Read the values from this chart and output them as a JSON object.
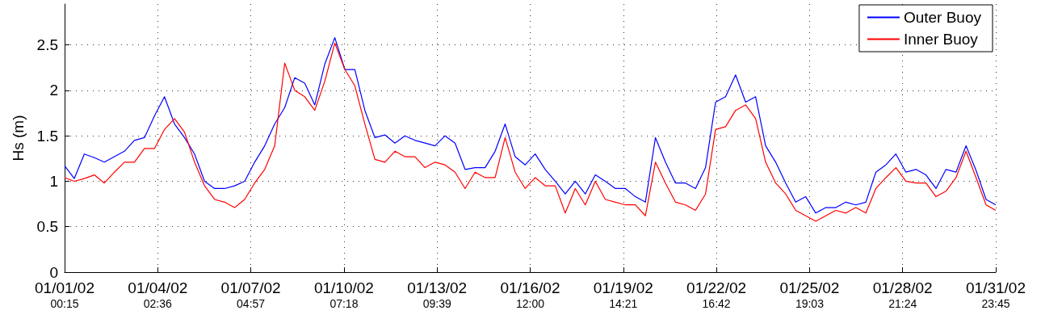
{
  "chart_data": {
    "type": "line",
    "ylabel": "Hs (m)",
    "x": [
      "--01-01T00:15",
      "--01-01T08:00",
      "--01-01T16:00",
      "--01-02T00:00",
      "--01-02T08:00",
      "--01-02T16:00",
      "--01-03T00:00",
      "--01-03T08:00",
      "--01-03T16:00",
      "--01-04T00:00",
      "--01-04T08:00",
      "--01-04T16:00",
      "--01-05T00:00",
      "--01-05T08:00",
      "--01-05T16:00",
      "--01-06T00:00",
      "--01-06T08:00",
      "--01-06T16:00",
      "--01-07T00:00",
      "--01-07T08:00",
      "--01-07T16:00",
      "--01-08T00:00",
      "--01-08T08:00",
      "--01-08T16:00",
      "--01-09T00:00",
      "--01-09T08:00",
      "--01-09T16:00",
      "--01-10T00:00",
      "--01-10T08:00",
      "--01-10T16:00",
      "--01-11T00:00",
      "--01-11T08:00",
      "--01-11T16:00",
      "--01-12T00:00",
      "--01-12T08:00",
      "--01-12T16:00",
      "--01-13T00:00",
      "--01-13T08:00",
      "--01-13T16:00",
      "--01-14T00:00",
      "--01-14T08:00",
      "--01-14T16:00",
      "--01-15T00:00",
      "--01-15T08:00",
      "--01-15T16:00",
      "--01-16T00:00",
      "--01-16T08:00",
      "--01-16T16:00",
      "--01-17T00:00",
      "--01-17T08:00",
      "--01-17T16:00",
      "--01-18T00:00",
      "--01-18T08:00",
      "--01-18T16:00",
      "--01-19T00:00",
      "--01-19T08:00",
      "--01-19T16:00",
      "--01-20T00:00",
      "--01-20T08:00",
      "--01-20T16:00",
      "--01-21T00:00",
      "--01-21T08:00",
      "--01-21T16:00",
      "--01-22T00:00",
      "--01-22T08:00",
      "--01-22T16:00",
      "--01-23T00:00",
      "--01-23T08:00",
      "--01-23T16:00",
      "--01-24T00:00",
      "--01-24T08:00",
      "--01-24T16:00",
      "--01-25T00:00",
      "--01-25T08:00",
      "--01-25T16:00",
      "--01-26T00:00",
      "--01-26T08:00",
      "--01-26T16:00",
      "--01-27T00:00",
      "--01-27T08:00",
      "--01-27T16:00",
      "--01-28T00:00",
      "--01-28T08:00",
      "--01-28T16:00",
      "--01-29T00:00",
      "--01-29T08:00",
      "--01-29T16:00",
      "--01-30T00:00",
      "--01-30T08:00",
      "--01-30T16:00",
      "--01-31T00:00",
      "--01-31T08:00",
      "--01-31T16:00",
      "--01-31T23:45"
    ],
    "series": [
      {
        "name": "Outer Buoy",
        "color": "#0000ff",
        "values": [
          1.17,
          1.03,
          1.3,
          1.26,
          1.21,
          1.27,
          1.33,
          1.45,
          1.48,
          1.72,
          1.93,
          1.63,
          1.48,
          1.3,
          1.0,
          0.92,
          0.92,
          0.95,
          1.0,
          1.21,
          1.39,
          1.63,
          1.81,
          2.14,
          2.08,
          1.84,
          2.29,
          2.58,
          2.23,
          2.23,
          1.78,
          1.48,
          1.51,
          1.42,
          1.5,
          1.45,
          1.42,
          1.39,
          1.5,
          1.42,
          1.13,
          1.15,
          1.15,
          1.33,
          1.63,
          1.27,
          1.18,
          1.3,
          1.13,
          1.0,
          0.86,
          1.0,
          0.86,
          1.07,
          1.0,
          0.92,
          0.92,
          0.83,
          0.77,
          1.48,
          1.21,
          0.98,
          0.98,
          0.92,
          1.15,
          1.87,
          1.93,
          2.17,
          1.87,
          1.93,
          1.39,
          1.21,
          0.98,
          0.77,
          0.83,
          0.65,
          0.71,
          0.71,
          0.77,
          0.74,
          0.77,
          1.1,
          1.18,
          1.3,
          1.1,
          1.13,
          1.07,
          0.92,
          1.13,
          1.1,
          1.39,
          1.12,
          0.8,
          0.74
        ]
      },
      {
        "name": "Inner Buoy",
        "color": "#ff0000",
        "values": [
          1.04,
          1.0,
          1.03,
          1.07,
          0.98,
          1.1,
          1.21,
          1.21,
          1.36,
          1.36,
          1.57,
          1.69,
          1.54,
          1.21,
          0.95,
          0.8,
          0.77,
          0.71,
          0.8,
          0.98,
          1.13,
          1.39,
          2.3,
          2.0,
          1.93,
          1.78,
          2.1,
          2.52,
          2.23,
          2.05,
          1.63,
          1.24,
          1.21,
          1.33,
          1.27,
          1.27,
          1.15,
          1.21,
          1.18,
          1.1,
          0.92,
          1.1,
          1.04,
          1.04,
          1.48,
          1.1,
          0.92,
          1.04,
          0.95,
          0.95,
          0.65,
          0.92,
          0.74,
          1.0,
          0.8,
          0.77,
          0.74,
          0.74,
          0.62,
          1.21,
          0.98,
          0.77,
          0.74,
          0.68,
          0.86,
          1.57,
          1.6,
          1.78,
          1.84,
          1.69,
          1.21,
          0.98,
          0.86,
          0.68,
          0.62,
          0.56,
          0.62,
          0.68,
          0.65,
          0.71,
          0.65,
          0.92,
          1.04,
          1.15,
          1.0,
          0.98,
          0.98,
          0.83,
          0.89,
          1.04,
          1.33,
          1.04,
          0.74,
          0.68
        ]
      }
    ],
    "xlim": [
      "--01-01T00:15",
      "--01-31T23:45"
    ],
    "xticks": [
      {
        "value": "--01-01T00:15",
        "label": "01/01/02\n00:15"
      },
      {
        "value": "--01-04T02:36",
        "label": "01/04/02\n02:36"
      },
      {
        "value": "--01-07T04:57",
        "label": "01/07/02\n04:57"
      },
      {
        "value": "--01-10T07:18",
        "label": "01/10/02\n07:18"
      },
      {
        "value": "--01-13T09:39",
        "label": "01/13/02\n09:39"
      },
      {
        "value": "--01-16T12:00",
        "label": "01/16/02\n12:00"
      },
      {
        "value": "--01-19T14:21",
        "label": "01/19/02\n14:21"
      },
      {
        "value": "--01-22T16:42",
        "label": "01/22/02\n16:42"
      },
      {
        "value": "--01-25T19:03",
        "label": "01/25/02\n19:03"
      },
      {
        "value": "--01-28T21:24",
        "label": "01/28/02\n21:24"
      },
      {
        "value": "--01-31T23:45",
        "label": "01/31/02\n23:45"
      }
    ],
    "ylim": [
      0,
      2.95
    ],
    "yticks": [
      0,
      0.5,
      1,
      1.5,
      2,
      2.5
    ],
    "grid": true,
    "legend": "top right",
    "marker": "none",
    "line_style": "solid"
  }
}
